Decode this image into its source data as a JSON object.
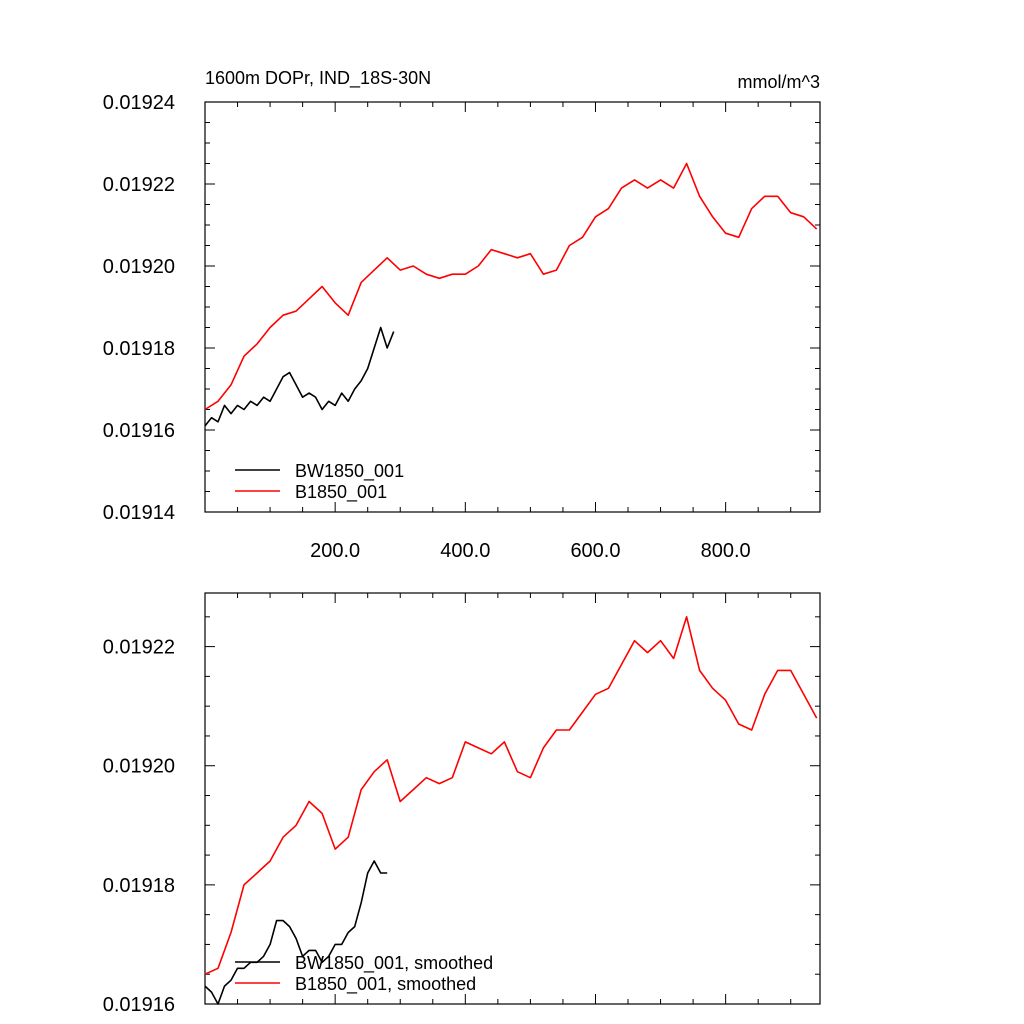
{
  "chart_data": [
    {
      "type": "line",
      "title": "1600m DOPr, IND_18S-30N",
      "units": "mmol/m^3",
      "xlabel": "",
      "ylabel": "",
      "xlim": [
        0,
        945
      ],
      "ylim": [
        0.01914,
        0.01924
      ],
      "x_ticks": [
        "200.0",
        "400.0",
        "600.0",
        "800.0"
      ],
      "y_ticks": [
        "0.01914",
        "0.01916",
        "0.01918",
        "0.01920",
        "0.01922",
        "0.01924"
      ],
      "legend_position": "bottom-left",
      "series": [
        {
          "name": "BW1850_001",
          "color": "#000000",
          "x": [
            0,
            10,
            20,
            30,
            40,
            50,
            60,
            70,
            80,
            90,
            100,
            110,
            120,
            130,
            140,
            150,
            160,
            170,
            180,
            190,
            200,
            210,
            220,
            230,
            240,
            250,
            260,
            270,
            280,
            290
          ],
          "y": [
            0.019161,
            0.019163,
            0.019162,
            0.019166,
            0.019164,
            0.019166,
            0.019165,
            0.019167,
            0.019166,
            0.019168,
            0.019167,
            0.01917,
            0.019173,
            0.019174,
            0.019171,
            0.019168,
            0.019169,
            0.019168,
            0.019165,
            0.019167,
            0.019166,
            0.019169,
            0.019167,
            0.01917,
            0.019172,
            0.019175,
            0.01918,
            0.019185,
            0.01918,
            0.019184
          ]
        },
        {
          "name": "B1850_001",
          "color": "#ff0000",
          "x": [
            0,
            20,
            40,
            60,
            80,
            100,
            120,
            140,
            160,
            180,
            200,
            220,
            240,
            260,
            280,
            300,
            320,
            340,
            360,
            380,
            400,
            420,
            440,
            460,
            480,
            500,
            520,
            540,
            560,
            580,
            600,
            620,
            640,
            660,
            680,
            700,
            720,
            740,
            760,
            780,
            800,
            820,
            840,
            860,
            880,
            900,
            920,
            940
          ],
          "y": [
            0.019165,
            0.019167,
            0.019171,
            0.019178,
            0.019181,
            0.019185,
            0.019188,
            0.019189,
            0.019192,
            0.019195,
            0.019191,
            0.019188,
            0.019196,
            0.019199,
            0.019202,
            0.019199,
            0.0192,
            0.019198,
            0.019197,
            0.019198,
            0.019198,
            0.0192,
            0.019204,
            0.019203,
            0.019202,
            0.019203,
            0.019198,
            0.019199,
            0.019205,
            0.019207,
            0.019212,
            0.019214,
            0.019219,
            0.019221,
            0.019219,
            0.019221,
            0.019219,
            0.019225,
            0.019217,
            0.019212,
            0.019208,
            0.019207,
            0.019214,
            0.019217,
            0.019217,
            0.019213,
            0.019212,
            0.019209
          ]
        }
      ]
    },
    {
      "type": "line",
      "title": "",
      "xlabel": "",
      "ylabel": "",
      "xlim": [
        0,
        945
      ],
      "ylim": [
        0.01916,
        0.019229
      ],
      "y_ticks": [
        "0.01916",
        "0.01918",
        "0.01920",
        "0.01922"
      ],
      "legend_position": "bottom-left",
      "series": [
        {
          "name": "BW1850_001, smoothed",
          "color": "#000000",
          "x": [
            0,
            10,
            20,
            30,
            40,
            50,
            60,
            70,
            80,
            90,
            100,
            110,
            120,
            130,
            140,
            150,
            160,
            170,
            180,
            190,
            200,
            210,
            220,
            230,
            240,
            250,
            260,
            270,
            280
          ],
          "y": [
            0.019163,
            0.019162,
            0.01916,
            0.019163,
            0.019164,
            0.019166,
            0.019166,
            0.019167,
            0.019167,
            0.019168,
            0.01917,
            0.019174,
            0.019174,
            0.019173,
            0.019171,
            0.019168,
            0.019169,
            0.019169,
            0.019167,
            0.019168,
            0.01917,
            0.01917,
            0.019172,
            0.019173,
            0.019177,
            0.019182,
            0.019184,
            0.019182,
            0.019182
          ]
        },
        {
          "name": "B1850_001, smoothed",
          "color": "#ff0000",
          "x": [
            0,
            20,
            40,
            60,
            80,
            100,
            120,
            140,
            160,
            180,
            200,
            220,
            240,
            260,
            280,
            300,
            320,
            340,
            360,
            380,
            400,
            420,
            440,
            460,
            480,
            500,
            520,
            540,
            560,
            580,
            600,
            620,
            640,
            660,
            680,
            700,
            720,
            740,
            760,
            780,
            800,
            820,
            840,
            860,
            880,
            900,
            920,
            940
          ],
          "y": [
            0.019165,
            0.019166,
            0.019172,
            0.01918,
            0.019182,
            0.019184,
            0.019188,
            0.01919,
            0.019194,
            0.019192,
            0.019186,
            0.019188,
            0.019196,
            0.019199,
            0.019201,
            0.019194,
            0.019196,
            0.019198,
            0.019197,
            0.019198,
            0.019204,
            0.019203,
            0.019202,
            0.019204,
            0.019199,
            0.019198,
            0.019203,
            0.019206,
            0.019206,
            0.019209,
            0.019212,
            0.019213,
            0.019217,
            0.019221,
            0.019219,
            0.019221,
            0.019218,
            0.019225,
            0.019216,
            0.019213,
            0.019211,
            0.019207,
            0.019206,
            0.019212,
            0.019216,
            0.019216,
            0.019212,
            0.019208
          ]
        }
      ]
    }
  ]
}
